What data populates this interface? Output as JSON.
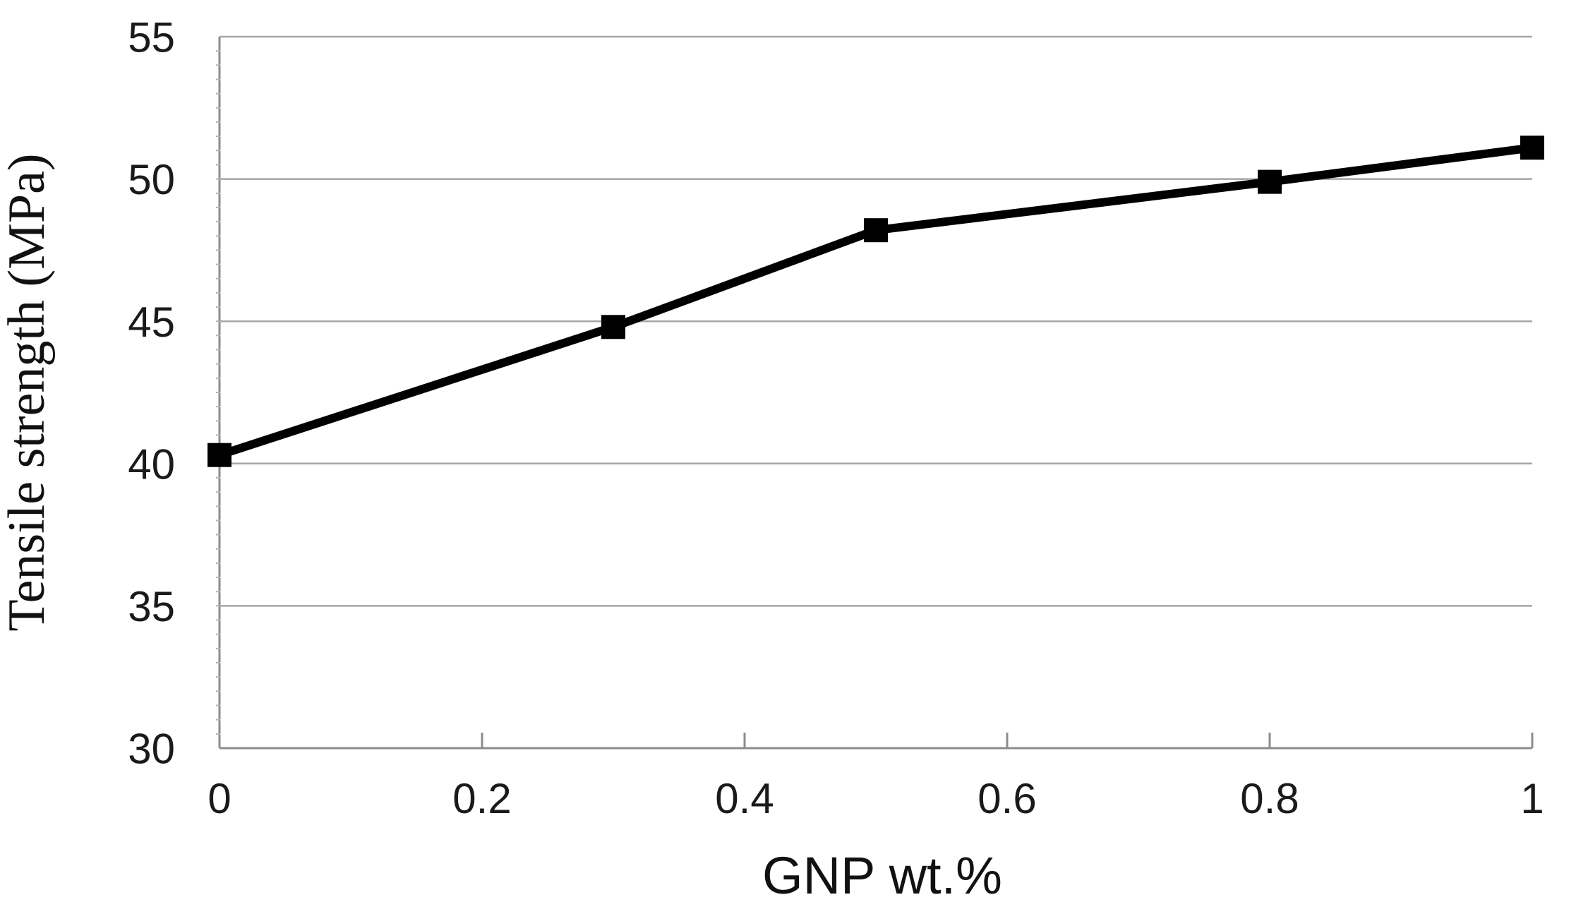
{
  "chart_data": {
    "type": "line",
    "title": "",
    "xlabel": "GNP wt.%",
    "ylabel": "Tensile strength (MPa)",
    "x": [
      0,
      0.3,
      0.5,
      0.8,
      1
    ],
    "series": [
      {
        "name": "Tensile strength",
        "values": [
          40.3,
          44.8,
          48.2,
          49.9,
          51.1
        ]
      }
    ],
    "xlim": [
      0,
      1
    ],
    "ylim": [
      30,
      55
    ],
    "x_ticks": [
      0,
      0.2,
      0.4,
      0.6,
      0.8,
      1
    ],
    "x_tick_labels": [
      "0",
      "0.2",
      "0.4",
      "0.6",
      "0.8",
      "1"
    ],
    "y_ticks": [
      30,
      35,
      40,
      45,
      50,
      55
    ],
    "y_tick_labels": [
      "30",
      "35",
      "40",
      "45",
      "50",
      "55"
    ],
    "grid": "horizontal",
    "legend_position": "none",
    "marker": "square",
    "colors": {
      "line": "#000000",
      "marker": "#000000",
      "gridline": "#a6a6a6",
      "axis": "#8c8c8c",
      "minor_tick": "#b3b3b3",
      "text": "#1a1a1a",
      "background": "#ffffff"
    }
  }
}
